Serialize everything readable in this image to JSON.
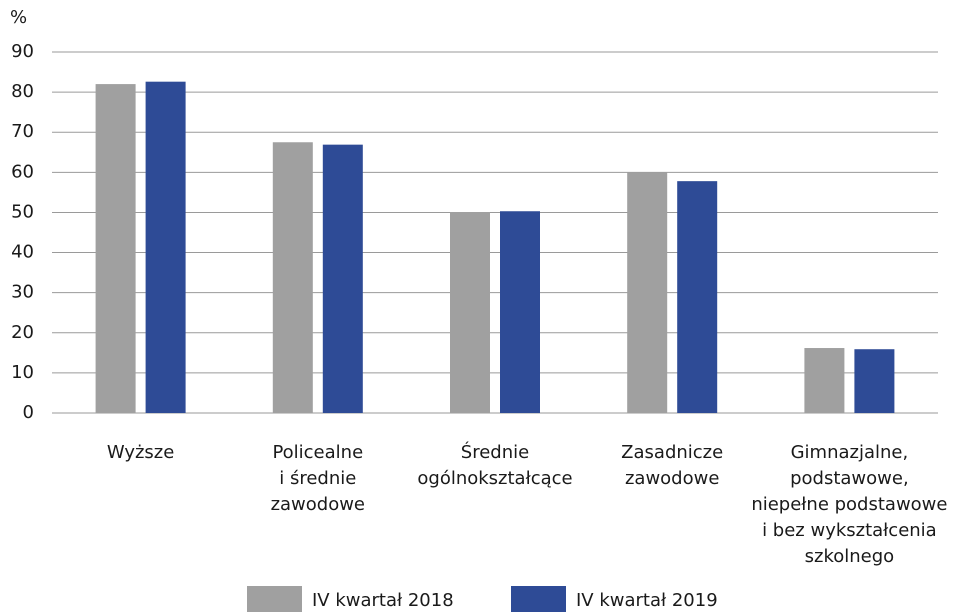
{
  "chart_data": {
    "type": "bar",
    "y_label": "%",
    "categories": [
      "Wyższe",
      "Policealne\ni średnie\nzawodowe",
      "Średnie\nogólnokształcące",
      "Zasadnicze\nzawodowe",
      "Gimnazjalne,\npodstawowe,\nniepełne podstawowe\ni bez wykształcenia\nszkolnego"
    ],
    "series": [
      {
        "name": "IV kwartał 2018",
        "color": "#a0a0a0",
        "values": [
          82.0,
          67.5,
          50.1,
          60.0,
          16.2
        ]
      },
      {
        "name": "IV kwartał 2019",
        "color": "#2e4b96",
        "values": [
          82.6,
          66.9,
          50.3,
          57.8,
          15.9
        ]
      }
    ],
    "ylim": [
      0,
      90
    ],
    "yticks": [
      0,
      10,
      20,
      30,
      40,
      50,
      60,
      70,
      80,
      90
    ],
    "grid": true,
    "legend": "bottom"
  }
}
